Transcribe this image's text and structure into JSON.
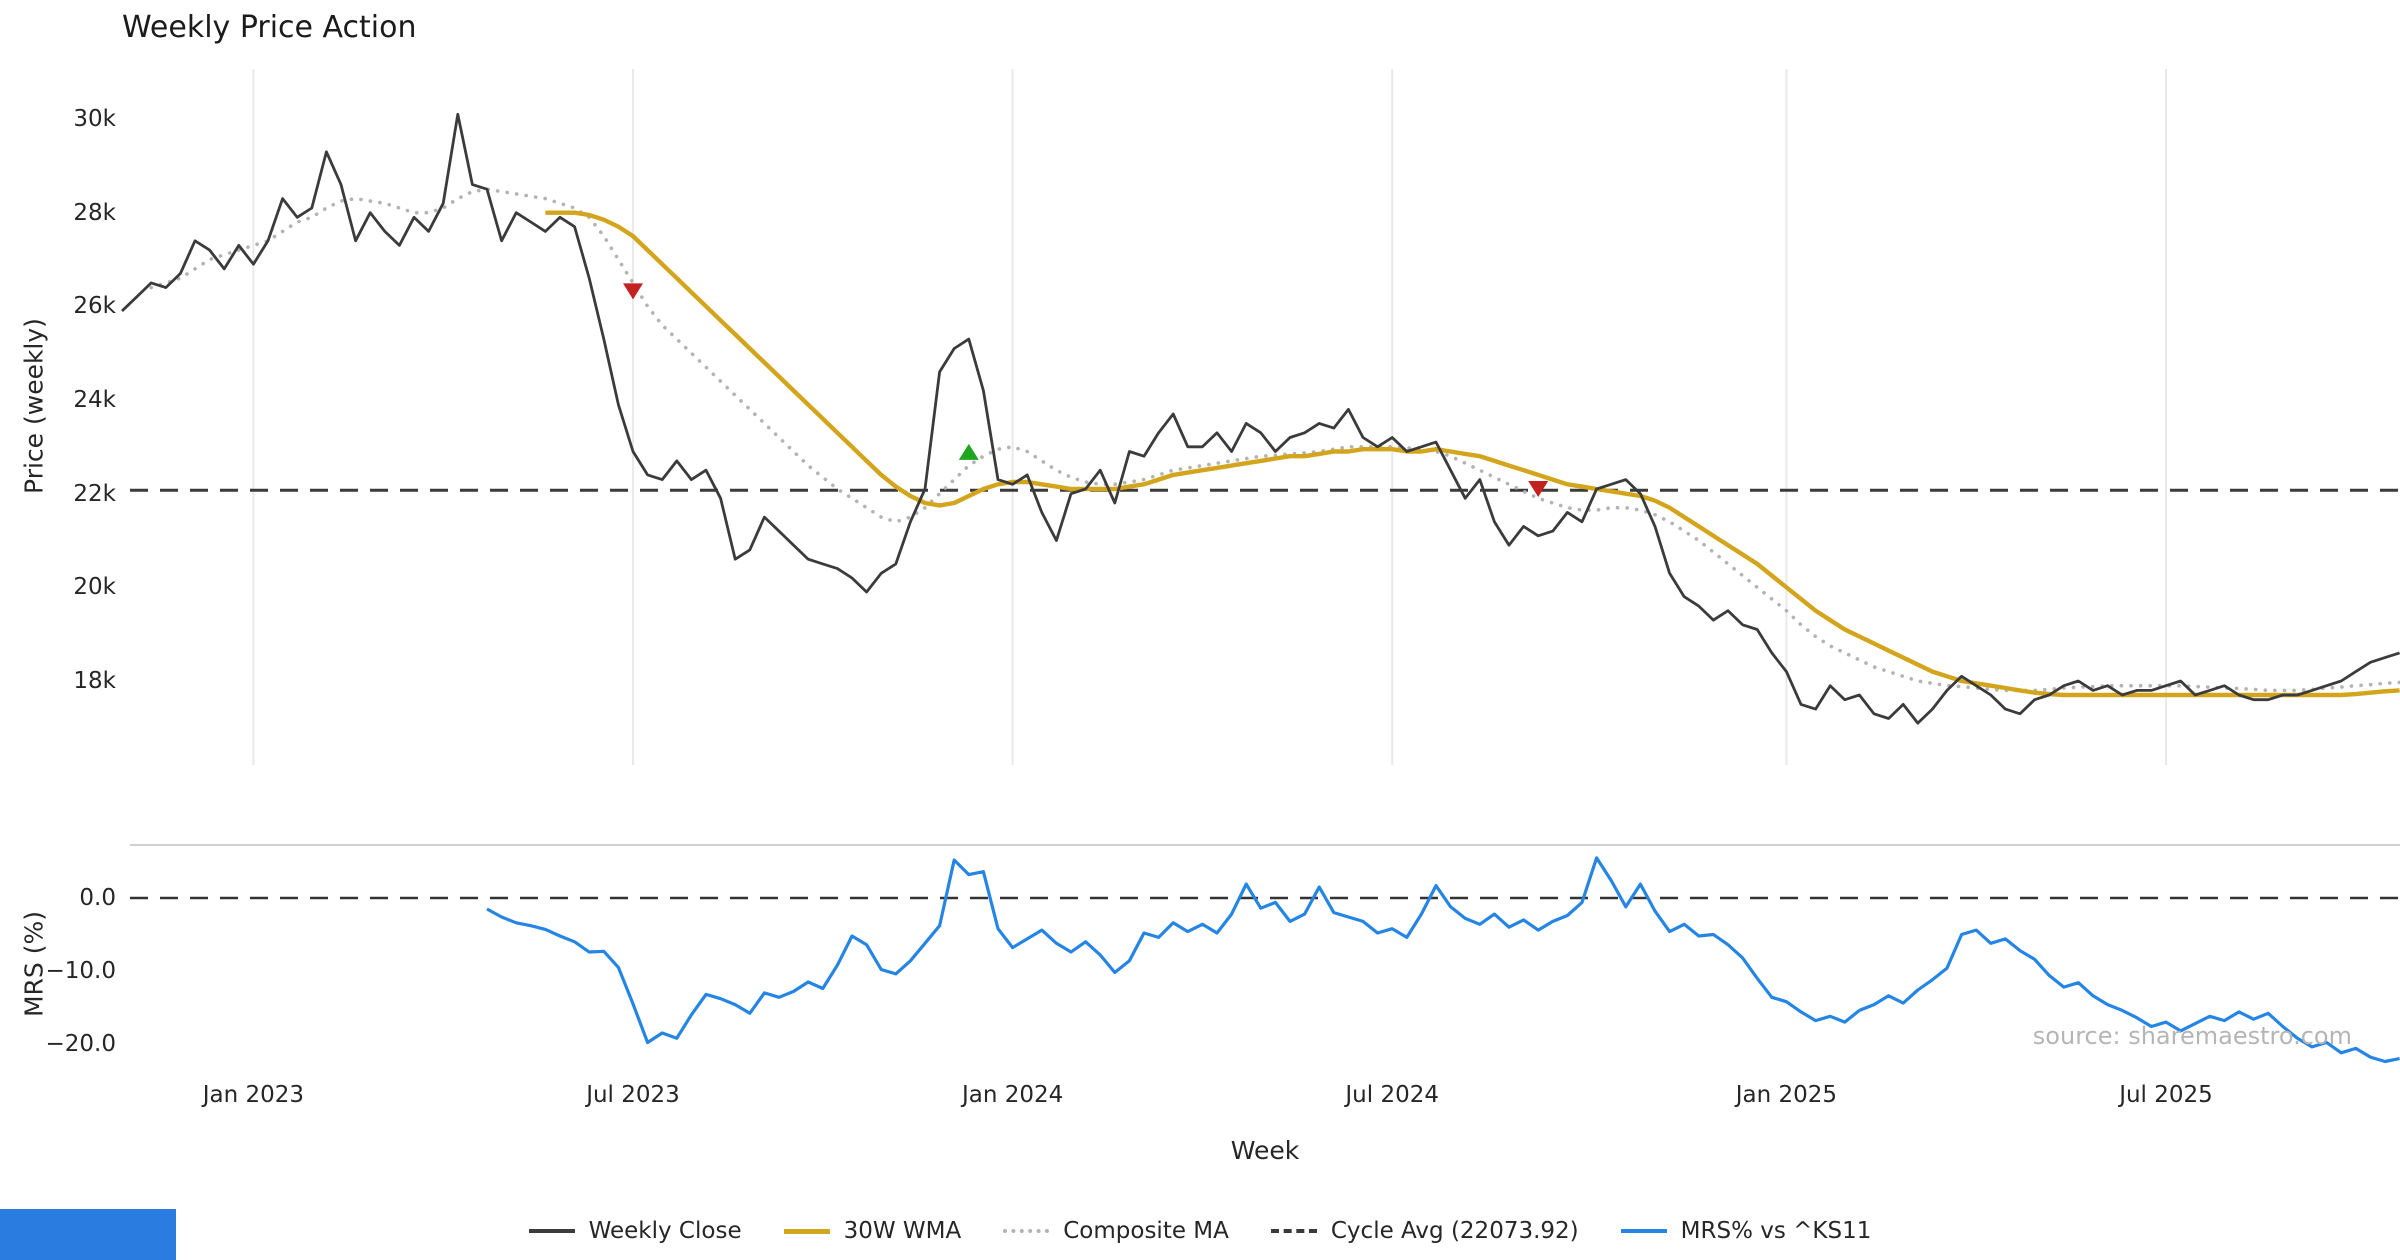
{
  "title": "Weekly Price Action",
  "watermark": "source: sharemaestro.com",
  "colors": {
    "buy": "#1fa51f",
    "sell": "#c42121",
    "grid": "#e9e9e9",
    "spine": "#c9c9c9",
    "zero_dash": "#333333",
    "close": "#3b3b3b",
    "wma": "#d3a51d",
    "composite": "#b3b3b3",
    "cycle": "#3a3a3a",
    "mrs": "#2585e4"
  },
  "legend": [
    {
      "id": "close",
      "label": "Weekly Close",
      "color": "#3b3b3b",
      "style": "solid"
    },
    {
      "id": "wma",
      "label": "30W WMA",
      "color": "#d3a51d",
      "style": "solid"
    },
    {
      "id": "composite",
      "label": "Composite MA",
      "color": "#b3b3b3",
      "style": "dotted"
    },
    {
      "id": "cycle",
      "label": "Cycle Avg (22073.92)",
      "color": "#3a3a3a",
      "style": "dashed"
    },
    {
      "id": "mrs",
      "label": "MRS% vs ^KS11",
      "color": "#2585e4",
      "style": "solid"
    }
  ],
  "chart_data": {
    "type": "line",
    "title": "Weekly Price Action",
    "x_axis": {
      "label": "Week",
      "start_date": "2022-10-31",
      "step_days": 7,
      "n_weeks": 157
    },
    "x_ticks": [
      {
        "label": "Jan 2023",
        "week_index": 9
      },
      {
        "label": "Jul 2023",
        "week_index": 35
      },
      {
        "label": "Jan 2024",
        "week_index": 61
      },
      {
        "label": "Jul 2024",
        "week_index": 87
      },
      {
        "label": "Jan 2025",
        "week_index": 114
      },
      {
        "label": "Jul 2025",
        "week_index": 140
      }
    ],
    "panels": [
      {
        "name": "price",
        "ylabel": "Price (weekly)",
        "ylim": [
          16200,
          31100
        ],
        "grid": "vertical-only",
        "yticks": [
          {
            "label": "30k",
            "value": 30000
          },
          {
            "label": "28k",
            "value": 28000
          },
          {
            "label": "26k",
            "value": 26000
          },
          {
            "label": "24k",
            "value": 24000
          },
          {
            "label": "22k",
            "value": 22000
          },
          {
            "label": "20k",
            "value": 20000
          },
          {
            "label": "18k",
            "value": 18000
          }
        ],
        "series": [
          {
            "name": "Weekly Close",
            "color": "#3b3b3b",
            "line": "solid",
            "start_week": 0,
            "values": [
              25900,
              26200,
              26500,
              26400,
              26700,
              27400,
              27200,
              26800,
              27300,
              26900,
              27400,
              28300,
              27900,
              28100,
              29300,
              28600,
              27400,
              28000,
              27600,
              27300,
              27900,
              27600,
              28200,
              30100,
              28600,
              28500,
              27400,
              28000,
              27800,
              27600,
              27900,
              27700,
              26600,
              25300,
              23900,
              22900,
              22400,
              22300,
              22700,
              22300,
              22500,
              21900,
              20600,
              20800,
              21500,
              21200,
              20900,
              20600,
              20500,
              20400,
              20200,
              19900,
              20300,
              20500,
              21400,
              22100,
              24600,
              25100,
              25300,
              24200,
              22300,
              22200,
              22400,
              21600,
              21000,
              22000,
              22100,
              22500,
              21800,
              22900,
              22800,
              23300,
              23700,
              23000,
              23000,
              23300,
              22900,
              23500,
              23300,
              22900,
              23200,
              23300,
              23500,
              23400,
              23800,
              23200,
              23000,
              23200,
              22900,
              23000,
              23100,
              22500,
              21900,
              22300,
              21400,
              20900,
              21300,
              21100,
              21200,
              21600,
              21400,
              22100,
              22200,
              22300,
              22000,
              21300,
              20300,
              19800,
              19600,
              19300,
              19500,
              19200,
              19100,
              18600,
              18200,
              17500,
              17400,
              17900,
              17600,
              17700,
              17300,
              17200,
              17500,
              17100,
              17400,
              17800,
              18100,
              17900,
              17700,
              17400,
              17300,
              17600,
              17700,
              17900,
              18000,
              17800,
              17900,
              17700,
              17800,
              17800,
              17900,
              18000,
              17700,
              17800,
              17900,
              17700,
              17600,
              17600,
              17700,
              17700,
              17800,
              17900,
              18000,
              18200,
              18400,
              18500,
              18600
            ]
          },
          {
            "name": "30W WMA",
            "color": "#d3a51d",
            "line": "solid",
            "start_week": 29,
            "values": [
              28000,
              28000,
              28000,
              27950,
              27850,
              27700,
              27500,
              27200,
              26900,
              26600,
              26300,
              26000,
              25700,
              25400,
              25100,
              24800,
              24500,
              24200,
              23900,
              23600,
              23300,
              23000,
              22700,
              22400,
              22150,
              21950,
              21800,
              21750,
              21800,
              21950,
              22100,
              22200,
              22250,
              22250,
              22200,
              22150,
              22100,
              22100,
              22100,
              22100,
              22150,
              22200,
              22300,
              22400,
              22450,
              22500,
              22550,
              22600,
              22650,
              22700,
              22750,
              22800,
              22800,
              22850,
              22900,
              22900,
              22950,
              22950,
              22950,
              22900,
              22900,
              22950,
              22900,
              22850,
              22800,
              22700,
              22600,
              22500,
              22400,
              22300,
              22200,
              22150,
              22100,
              22050,
              22000,
              21950,
              21850,
              21700,
              21500,
              21300,
              21100,
              20900,
              20700,
              20500,
              20250,
              20000,
              19750,
              19500,
              19300,
              19100,
              18950,
              18800,
              18650,
              18500,
              18350,
              18200,
              18100,
              18000,
              17950,
              17900,
              17850,
              17800,
              17750,
              17720,
              17700,
              17700,
              17700,
              17700,
              17700,
              17700,
              17700,
              17700,
              17700,
              17700,
              17700,
              17700,
              17700,
              17700,
              17700,
              17700,
              17700,
              17700,
              17700,
              17700,
              17720,
              17750,
              17780,
              17800
            ]
          },
          {
            "name": "Composite MA",
            "color": "#b3b3b3",
            "line": "dotted",
            "start_week": 2,
            "values": [
              26400,
              26500,
              26600,
              26800,
              27000,
              27100,
              27200,
              27300,
              27400,
              27600,
              27800,
              27900,
              28100,
              28250,
              28300,
              28250,
              28200,
              28100,
              28000,
              28000,
              28100,
              28300,
              28450,
              28500,
              28450,
              28400,
              28350,
              28300,
              28200,
              28100,
              27900,
              27500,
              27000,
              26500,
              26000,
              25600,
              25300,
              25000,
              24700,
              24400,
              24100,
              23800,
              23500,
              23200,
              22900,
              22600,
              22350,
              22100,
              21900,
              21700,
              21500,
              21400,
              21500,
              21700,
              22000,
              22300,
              22600,
              22800,
              22950,
              23000,
              22900,
              22700,
              22500,
              22350,
              22250,
              22200,
              22200,
              22250,
              22300,
              22400,
              22500,
              22550,
              22600,
              22650,
              22700,
              22750,
              22800,
              22820,
              22850,
              22870,
              22900,
              22950,
              23000,
              23000,
              23000,
              23000,
              22980,
              22950,
              22900,
              22800,
              22650,
              22500,
              22350,
              22200,
              22050,
              21900,
              21800,
              21700,
              21650,
              21650,
              21700,
              21700,
              21650,
              21550,
              21400,
              21200,
              21000,
              20750,
              20500,
              20250,
              20000,
              19750,
              19500,
              19200,
              18950,
              18750,
              18600,
              18450,
              18300,
              18200,
              18100,
              18000,
              17950,
              17900,
              17880,
              17850,
              17820,
              17800,
              17800,
              17800,
              17820,
              17850,
              17870,
              17880,
              17900,
              17900,
              17900,
              17900,
              17900,
              17900,
              17880,
              17870,
              17850,
              17840,
              17820,
              17800,
              17800,
              17800,
              17820,
              17850,
              17870,
              17900,
              17920,
              17950,
              17970
            ]
          },
          {
            "name": "Cycle Avg",
            "kind": "hline",
            "color": "#3a3a3a",
            "line": "dashed",
            "value": 22073.92
          }
        ],
        "signals": [
          {
            "type": "sell",
            "week_index": 35,
            "price": 26340
          },
          {
            "type": "buy",
            "week_index": 58,
            "price": 22870
          },
          {
            "type": "sell",
            "week_index": 97,
            "price": 22120
          }
        ]
      },
      {
        "name": "mrs",
        "ylabel": "MRS (%)",
        "ylim": [
          -25,
          7
        ],
        "zero_line": 0,
        "yticks": [
          {
            "label": "0.0",
            "value": 0
          },
          {
            "label": "−10.0",
            "value": -10
          },
          {
            "label": "−20.0",
            "value": -20
          }
        ],
        "series": [
          {
            "name": "MRS% vs ^KS11",
            "color": "#2585e4",
            "line": "solid",
            "start_week": 25,
            "values": [
              -1.5,
              -2.6,
              -3.4,
              -3.8,
              -4.3,
              -5.2,
              -6.0,
              -7.4,
              -7.3,
              -9.5,
              -14.5,
              -19.8,
              -18.5,
              -19.2,
              -16.0,
              -13.2,
              -13.8,
              -14.6,
              -15.8,
              -13.0,
              -13.6,
              -12.8,
              -11.5,
              -12.4,
              -9.2,
              -5.2,
              -6.4,
              -9.8,
              -10.4,
              -8.6,
              -6.2,
              -3.8,
              5.2,
              3.2,
              3.6,
              -4.2,
              -6.8,
              -5.6,
              -4.4,
              -6.2,
              -7.4,
              -6.0,
              -7.8,
              -10.2,
              -8.6,
              -4.8,
              -5.4,
              -3.4,
              -4.6,
              -3.6,
              -4.8,
              -2.2,
              1.9,
              -1.4,
              -0.6,
              -3.2,
              -2.2,
              1.5,
              -2.0,
              -2.6,
              -3.2,
              -4.8,
              -4.2,
              -5.4,
              -2.2,
              1.7,
              -1.2,
              -2.8,
              -3.6,
              -2.2,
              -4.0,
              -3.0,
              -4.4,
              -3.2,
              -2.4,
              -0.6,
              5.5,
              2.4,
              -1.2,
              1.9,
              -1.8,
              -4.6,
              -3.6,
              -5.2,
              -5.0,
              -6.4,
              -8.2,
              -11.0,
              -13.6,
              -14.2,
              -15.6,
              -16.8,
              -16.2,
              -17.0,
              -15.4,
              -14.6,
              -13.4,
              -14.4,
              -12.6,
              -11.2,
              -9.6,
              -5.0,
              -4.4,
              -6.2,
              -5.6,
              -7.2,
              -8.4,
              -10.6,
              -12.2,
              -11.6,
              -13.4,
              -14.6,
              -15.4,
              -16.4,
              -17.6,
              -17.0,
              -18.2,
              -17.2,
              -16.2,
              -16.8,
              -15.6,
              -16.6,
              -15.8,
              -17.6,
              -19.2,
              -20.4,
              -19.8,
              -21.2,
              -20.6,
              -21.8,
              -22.4,
              -22.0
            ]
          }
        ]
      }
    ]
  }
}
